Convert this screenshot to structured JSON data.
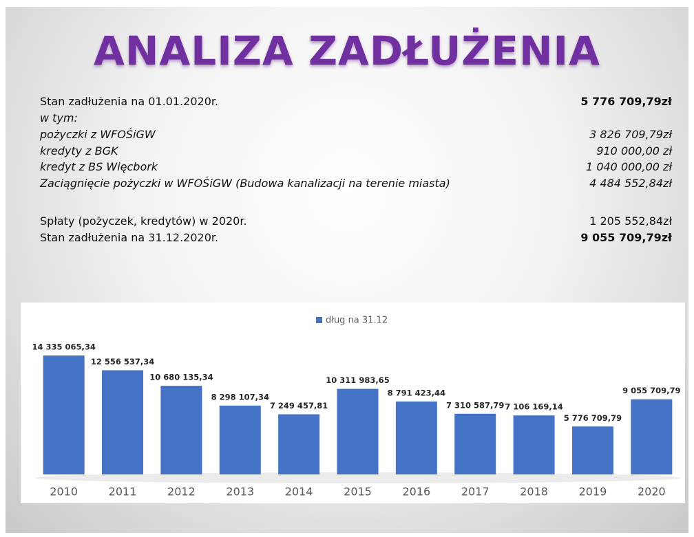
{
  "title": "ANALIZA ZADŁUŻENIA",
  "summary": [
    {
      "label": "Stan zadłużenia  na 01.01.2020r.",
      "value": "5 776 709,79zł"
    },
    {
      "label": "w tym:"
    },
    {
      "label": "pożyczki z WFOŚiGW",
      "value": "3 826 709,79zł"
    },
    {
      "label": "kredyty z BGK",
      "value": "910 000,00 zł"
    },
    {
      "label": "kredyt z BS Więcbork",
      "value": "1 040 000,00 zł"
    },
    {
      "label": "Zaciągnięcie pożyczki w WFOŚiGW (Budowa kanalizacji na terenie miasta)",
      "value": "4 484 552,84zł"
    },
    {
      "label": "Spłaty (pożyczek, kredytów) w 2020r.",
      "value": "1 205 552,84zł"
    },
    {
      "label": "Stan zadłużenia na 31.12.2020r.",
      "value": "9 055 709,79zł"
    }
  ],
  "chart_data": {
    "type": "bar",
    "categories": [
      "2010",
      "2011",
      "2012",
      "2013",
      "2014",
      "2015",
      "2016",
      "2017",
      "2018",
      "2019",
      "2020"
    ],
    "series": [
      {
        "name": "dług na 31.12",
        "color": "#4472c4",
        "values": [
          14335065.34,
          12556537.34,
          10680135.34,
          8298107.34,
          7249457.81,
          10311983.65,
          8791423.44,
          7310587.79,
          7106169.14,
          5776709.79,
          9055709.79
        ],
        "value_labels": [
          "14 335 065,34",
          "12 556 537,34",
          "10 680 135,34",
          "8 298 107,34",
          "7 249 457,81",
          "10 311 983,65",
          "8 791 423,44",
          "7 310 587,79",
          "7 106 169,14",
          "5 776 709,79",
          "9 055 709,79"
        ]
      }
    ],
    "legend": "top"
  }
}
